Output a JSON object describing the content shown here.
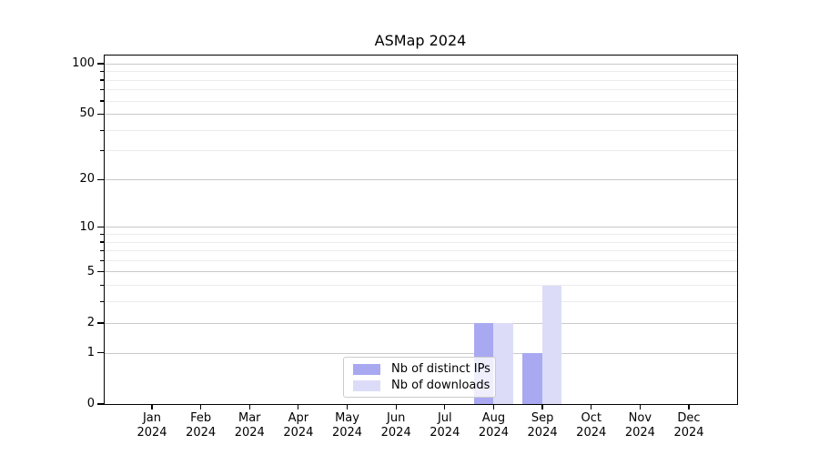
{
  "chart_data": {
    "type": "bar",
    "title": "ASMap 2024",
    "x_categories": [
      {
        "month": "Jan",
        "year": "2024"
      },
      {
        "month": "Feb",
        "year": "2024"
      },
      {
        "month": "Mar",
        "year": "2024"
      },
      {
        "month": "Apr",
        "year": "2024"
      },
      {
        "month": "May",
        "year": "2024"
      },
      {
        "month": "Jun",
        "year": "2024"
      },
      {
        "month": "Jul",
        "year": "2024"
      },
      {
        "month": "Aug",
        "year": "2024"
      },
      {
        "month": "Sep",
        "year": "2024"
      },
      {
        "month": "Oct",
        "year": "2024"
      },
      {
        "month": "Nov",
        "year": "2024"
      },
      {
        "month": "Dec",
        "year": "2024"
      }
    ],
    "series": [
      {
        "name": "Nb of distinct IPs",
        "color": "#a9a9f2",
        "values": [
          0,
          0,
          0,
          0,
          0,
          0,
          0,
          2,
          1,
          0,
          0,
          0
        ]
      },
      {
        "name": "Nb of downloads",
        "color": "#dcdcf9",
        "values": [
          0,
          0,
          0,
          0,
          0,
          0,
          0,
          2,
          4,
          0,
          0,
          0
        ]
      }
    ],
    "yscale": "log1p",
    "major_yticks": [
      0,
      1,
      2,
      5,
      10,
      20,
      50,
      100
    ],
    "minor_yticks": [
      3,
      4,
      6,
      7,
      8,
      9,
      30,
      40,
      60,
      70,
      80,
      90
    ],
    "ylim": [
      0,
      113
    ],
    "grid": true,
    "legend_position": "lower-center"
  }
}
